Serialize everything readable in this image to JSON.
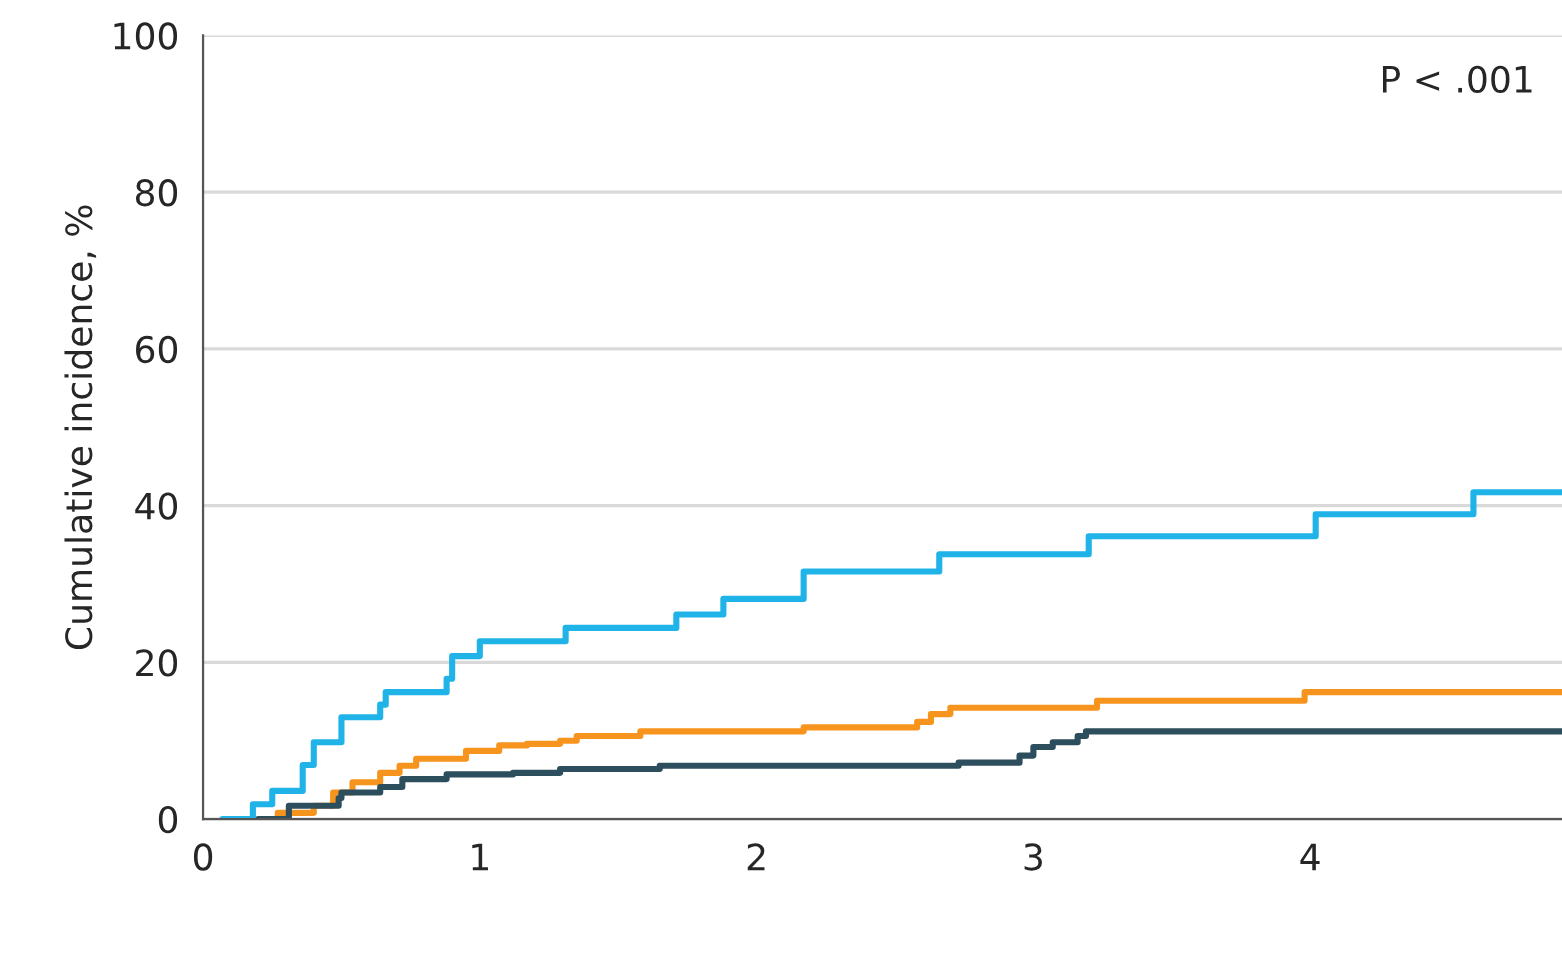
{
  "chart_data": {
    "type": "step",
    "ylabel": "Cumulative incidence, %",
    "annotations": [
      "P < .001"
    ],
    "xlim": [
      0,
      4.91
    ],
    "xticks": [
      0,
      1,
      2,
      3,
      4
    ],
    "ylim": [
      0,
      100
    ],
    "yticks": [
      0,
      20,
      40,
      60,
      80,
      100
    ],
    "grid": "y",
    "marker": "none",
    "line_style": "solid",
    "series": [
      {
        "color": "#1fb3e8",
        "x": [
          0.07,
          0.18,
          0.25,
          0.36,
          0.4,
          0.5,
          0.64,
          0.66,
          0.88,
          0.9,
          1.0,
          1.31,
          1.71,
          1.88,
          2.17,
          2.66,
          3.2,
          4.02,
          4.59,
          4.91
        ],
        "values": [
          0,
          1.9,
          3.6,
          6.9,
          9.8,
          13.0,
          14.6,
          16.2,
          17.9,
          20.8,
          22.7,
          24.4,
          26.1,
          28.1,
          31.6,
          33.8,
          36.1,
          38.9,
          41.7,
          41.7
        ]
      },
      {
        "color": "#f7941d",
        "x": [
          0.2,
          0.27,
          0.4,
          0.47,
          0.54,
          0.64,
          0.71,
          0.77,
          0.95,
          1.07,
          1.17,
          1.29,
          1.35,
          1.58,
          2.17,
          2.58,
          2.63,
          2.7,
          3.23,
          3.98,
          4.91
        ],
        "values": [
          0,
          0.8,
          1.7,
          3.4,
          4.7,
          5.9,
          6.8,
          7.7,
          8.7,
          9.4,
          9.6,
          10.0,
          10.6,
          11.2,
          11.7,
          12.4,
          13.4,
          14.2,
          15.1,
          16.2,
          16.2
        ]
      },
      {
        "color": "#2d4e5c",
        "x": [
          0.2,
          0.31,
          0.49,
          0.5,
          0.64,
          0.72,
          0.88,
          1.12,
          1.29,
          1.65,
          2.73,
          2.95,
          3.0,
          3.07,
          3.16,
          3.19,
          4.91
        ],
        "values": [
          0,
          1.7,
          2.7,
          3.4,
          4.1,
          5.1,
          5.7,
          5.9,
          6.4,
          6.8,
          7.2,
          8.1,
          9.2,
          9.8,
          10.6,
          11.2,
          11.2
        ]
      }
    ]
  }
}
